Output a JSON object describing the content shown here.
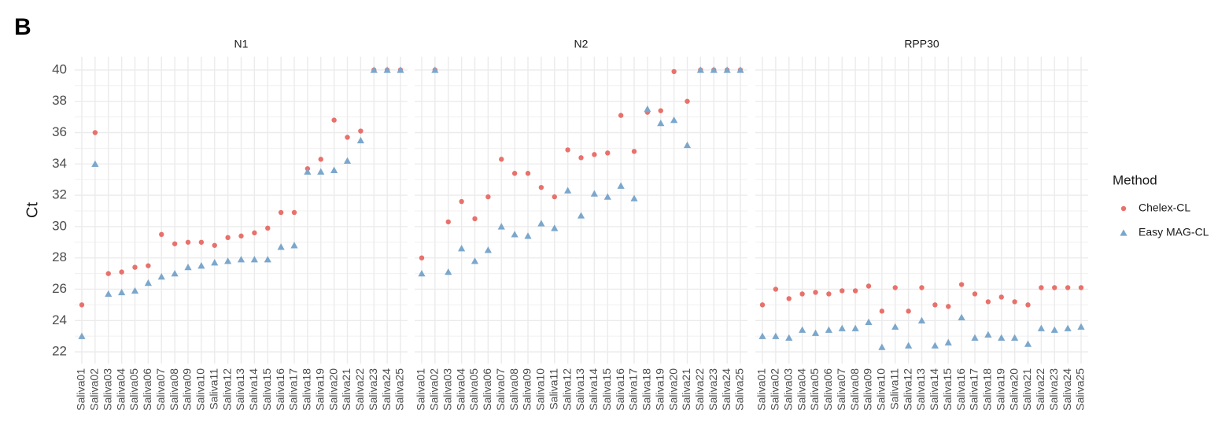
{
  "panel_label": "B",
  "legend_title": "Method",
  "chart_data": [
    {
      "type": "scatter",
      "title": "N1",
      "ylabel": "Ct",
      "categories": [
        "Saliva01",
        "Saliva02",
        "Saliva03",
        "Saliva04",
        "Saliva05",
        "Saliva06",
        "Saliva07",
        "Saliva08",
        "Saliva09",
        "Saliva10",
        "Saliva11",
        "Saliva12",
        "Saliva13",
        "Saliva14",
        "Saliva15",
        "Saliva16",
        "Saliva17",
        "Saliva18",
        "Saliva19",
        "Saliva20",
        "Saliva21",
        "Saliva22",
        "Saliva23",
        "Saliva24",
        "Saliva25"
      ],
      "series": [
        {
          "name": "Chelex-CL",
          "color": "#e8716b",
          "marker": "circle",
          "values": [
            25,
            36,
            27,
            27.1,
            27.4,
            27.5,
            29.5,
            28.9,
            29,
            29,
            28.8,
            29.3,
            29.4,
            29.6,
            29.9,
            30.9,
            30.9,
            33.7,
            34.3,
            36.8,
            35.7,
            36.1,
            40,
            40,
            40
          ]
        },
        {
          "name": "Easy MAG-CL",
          "color": "#7ba7cc",
          "marker": "triangle",
          "values": [
            23,
            34,
            25.7,
            25.8,
            25.9,
            26.4,
            26.8,
            27,
            27.4,
            27.5,
            27.7,
            27.8,
            27.9,
            27.9,
            27.9,
            28.7,
            28.8,
            33.5,
            33.5,
            33.6,
            34.2,
            35.5,
            40,
            40,
            40
          ]
        }
      ],
      "ylim": [
        21.25,
        40.85
      ],
      "yticks": [
        22,
        24,
        26,
        28,
        30,
        32,
        34,
        36,
        38,
        40
      ],
      "grid": true,
      "minor_grid": true
    },
    {
      "type": "scatter",
      "title": "N2",
      "categories": [
        "Saliva01",
        "Saliva02",
        "Saliva03",
        "Saliva04",
        "Saliva05",
        "Saliva06",
        "Saliva07",
        "Saliva08",
        "Saliva09",
        "Saliva10",
        "Saliva11",
        "Saliva12",
        "Saliva13",
        "Saliva14",
        "Saliva15",
        "Saliva16",
        "Saliva17",
        "Saliva18",
        "Saliva19",
        "Saliva20",
        "Saliva21",
        "Saliva22",
        "Saliva23",
        "Saliva24",
        "Saliva25"
      ],
      "series": [
        {
          "name": "Chelex-CL",
          "color": "#e8716b",
          "marker": "circle",
          "values": [
            28,
            40,
            30.3,
            31.6,
            30.5,
            31.9,
            34.3,
            33.4,
            33.4,
            32.5,
            31.9,
            34.9,
            34.4,
            34.6,
            34.7,
            37.1,
            34.8,
            37.3,
            37.4,
            39.9,
            38,
            40,
            40,
            40,
            40
          ]
        },
        {
          "name": "Easy MAG-CL",
          "color": "#7ba7cc",
          "marker": "triangle",
          "values": [
            27,
            40,
            27.1,
            28.6,
            27.8,
            28.5,
            30,
            29.5,
            29.4,
            30.2,
            29.9,
            32.3,
            30.7,
            32.1,
            31.9,
            32.6,
            31.8,
            37.5,
            36.6,
            36.8,
            35.2,
            40,
            40,
            40,
            40
          ]
        }
      ],
      "ylim": [
        21.25,
        40.85
      ],
      "yticks": [
        22,
        24,
        26,
        28,
        30,
        32,
        34,
        36,
        38,
        40
      ],
      "grid": true,
      "minor_grid": true
    },
    {
      "type": "scatter",
      "title": "RPP30",
      "categories": [
        "Saliva01",
        "Saliva02",
        "Saliva03",
        "Saliva04",
        "Saliva05",
        "Saliva06",
        "Saliva07",
        "Saliva08",
        "Saliva09",
        "Saliva10",
        "Saliva11",
        "Saliva12",
        "Saliva13",
        "Saliva14",
        "Saliva15",
        "Saliva16",
        "Saliva17",
        "Saliva18",
        "Saliva19",
        "Saliva20",
        "Saliva21",
        "Saliva22",
        "Saliva23",
        "Saliva24",
        "Saliva25"
      ],
      "series": [
        {
          "name": "Chelex-CL",
          "color": "#e8716b",
          "marker": "circle",
          "values": [
            25,
            26,
            25.4,
            25.7,
            25.8,
            25.7,
            25.9,
            25.9,
            26.2,
            24.6,
            26.1,
            24.6,
            26.1,
            25,
            24.9,
            26.3,
            25.7,
            25.2,
            25.5,
            25.2,
            25,
            26.1,
            26.1,
            26.1,
            26.1
          ]
        },
        {
          "name": "Easy MAG-CL",
          "color": "#7ba7cc",
          "marker": "triangle",
          "values": [
            23,
            23,
            22.9,
            23.4,
            23.2,
            23.4,
            23.5,
            23.5,
            23.9,
            22.3,
            23.6,
            22.4,
            24,
            22.4,
            22.6,
            24.2,
            22.9,
            23.1,
            22.9,
            22.9,
            22.5,
            23.5,
            23.4,
            23.5,
            23.6
          ]
        }
      ],
      "ylim": [
        21.25,
        40.85
      ],
      "yticks": [
        22,
        24,
        26,
        28,
        30,
        32,
        34,
        36,
        38,
        40
      ],
      "grid": true,
      "minor_grid": true
    }
  ]
}
